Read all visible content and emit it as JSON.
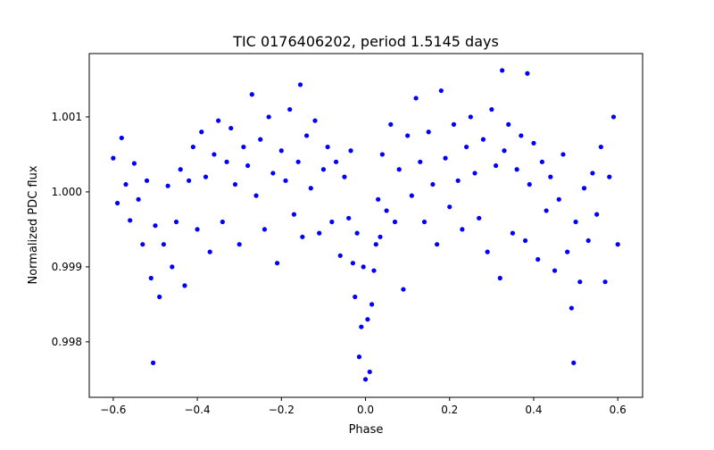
{
  "chart_data": {
    "type": "scatter",
    "title": "TIC 0176406202, period 1.5145 days",
    "xlabel": "Phase",
    "ylabel": "Normalized PDC flux",
    "xlim": [
      -0.657,
      0.659
    ],
    "ylim": [
      0.99726,
      1.001845
    ],
    "xticks": [
      -0.6,
      -0.4,
      -0.2,
      0.0,
      0.2,
      0.4,
      0.6
    ],
    "xtick_labels": [
      "−0.6",
      "−0.4",
      "−0.2",
      "0.0",
      "0.2",
      "0.4",
      "0.6"
    ],
    "yticks": [
      0.998,
      0.999,
      1.0,
      1.001
    ],
    "ytick_labels": [
      "0.998",
      "0.999",
      "1.000",
      "1.001"
    ],
    "grid": false,
    "marker_color": "#0000ff",
    "series": [
      {
        "name": "flux",
        "x": [
          -0.6,
          -0.59,
          -0.58,
          -0.57,
          -0.56,
          -0.55,
          -0.54,
          -0.53,
          -0.52,
          -0.51,
          -0.505,
          -0.5,
          -0.49,
          -0.48,
          -0.47,
          -0.46,
          -0.45,
          -0.44,
          -0.43,
          -0.42,
          -0.41,
          -0.4,
          -0.39,
          -0.38,
          -0.37,
          -0.36,
          -0.35,
          -0.34,
          -0.33,
          -0.32,
          -0.31,
          -0.3,
          -0.29,
          -0.28,
          -0.27,
          -0.26,
          -0.25,
          -0.24,
          -0.23,
          -0.22,
          -0.21,
          -0.2,
          -0.19,
          -0.18,
          -0.17,
          -0.16,
          -0.155,
          -0.15,
          -0.14,
          -0.13,
          -0.12,
          -0.11,
          -0.1,
          -0.09,
          -0.08,
          -0.07,
          -0.06,
          -0.05,
          -0.04,
          -0.035,
          -0.03,
          -0.025,
          -0.02,
          -0.015,
          -0.01,
          -0.005,
          0.0,
          0.005,
          0.01,
          0.015,
          0.02,
          0.025,
          0.03,
          0.035,
          0.04,
          0.05,
          0.06,
          0.07,
          0.08,
          0.09,
          0.1,
          0.11,
          0.12,
          0.13,
          0.14,
          0.15,
          0.16,
          0.17,
          0.18,
          0.19,
          0.2,
          0.21,
          0.22,
          0.23,
          0.24,
          0.25,
          0.26,
          0.27,
          0.28,
          0.29,
          0.3,
          0.31,
          0.32,
          0.325,
          0.33,
          0.34,
          0.35,
          0.36,
          0.37,
          0.38,
          0.385,
          0.39,
          0.4,
          0.41,
          0.42,
          0.43,
          0.44,
          0.45,
          0.46,
          0.47,
          0.48,
          0.49,
          0.495,
          0.5,
          0.51,
          0.52,
          0.53,
          0.54,
          0.55,
          0.56,
          0.57,
          0.58,
          0.59,
          0.6
        ],
        "y": [
          1.00045,
          0.99985,
          1.00072,
          1.0001,
          0.99962,
          1.00038,
          0.9999,
          0.9993,
          1.00015,
          0.99885,
          0.99772,
          0.99955,
          0.9986,
          0.9993,
          1.00008,
          0.999,
          0.9996,
          1.0003,
          0.99875,
          1.00015,
          1.0006,
          0.9995,
          1.0008,
          1.0002,
          0.9992,
          1.0005,
          1.00095,
          0.9996,
          1.0004,
          1.00085,
          1.0001,
          0.9993,
          1.0006,
          1.00035,
          1.0013,
          0.99995,
          1.0007,
          0.9995,
          1.001,
          1.00025,
          0.99905,
          1.00055,
          1.00015,
          1.0011,
          0.9997,
          1.0004,
          1.00143,
          0.9994,
          1.00075,
          1.00005,
          1.00095,
          0.99945,
          1.0003,
          1.0006,
          0.9996,
          1.0004,
          0.99915,
          1.0002,
          0.99965,
          1.00055,
          0.99905,
          0.9986,
          0.99945,
          0.9978,
          0.9982,
          0.999,
          0.9975,
          0.9983,
          0.9976,
          0.9985,
          0.99895,
          0.9993,
          0.9999,
          0.9994,
          1.0005,
          0.99975,
          1.0009,
          0.9996,
          1.0003,
          0.9987,
          1.00075,
          0.99995,
          1.00125,
          1.0004,
          0.9996,
          1.0008,
          1.0001,
          0.9993,
          1.00135,
          1.00045,
          0.9998,
          1.0009,
          1.00015,
          0.9995,
          1.0006,
          1.001,
          1.00025,
          0.99965,
          1.0007,
          0.9992,
          1.0011,
          1.00035,
          0.99885,
          1.00162,
          1.00055,
          1.0009,
          0.99945,
          1.0003,
          1.00075,
          0.99935,
          1.00158,
          1.0001,
          1.00065,
          0.9991,
          1.0004,
          0.99975,
          1.0002,
          0.99895,
          0.9999,
          1.0005,
          0.9992,
          0.99845,
          0.99772,
          0.9996,
          0.9988,
          1.00005,
          0.99935,
          1.00025,
          0.9997,
          1.0006,
          0.9988,
          1.0002,
          1.001,
          0.9993
        ]
      }
    ]
  }
}
